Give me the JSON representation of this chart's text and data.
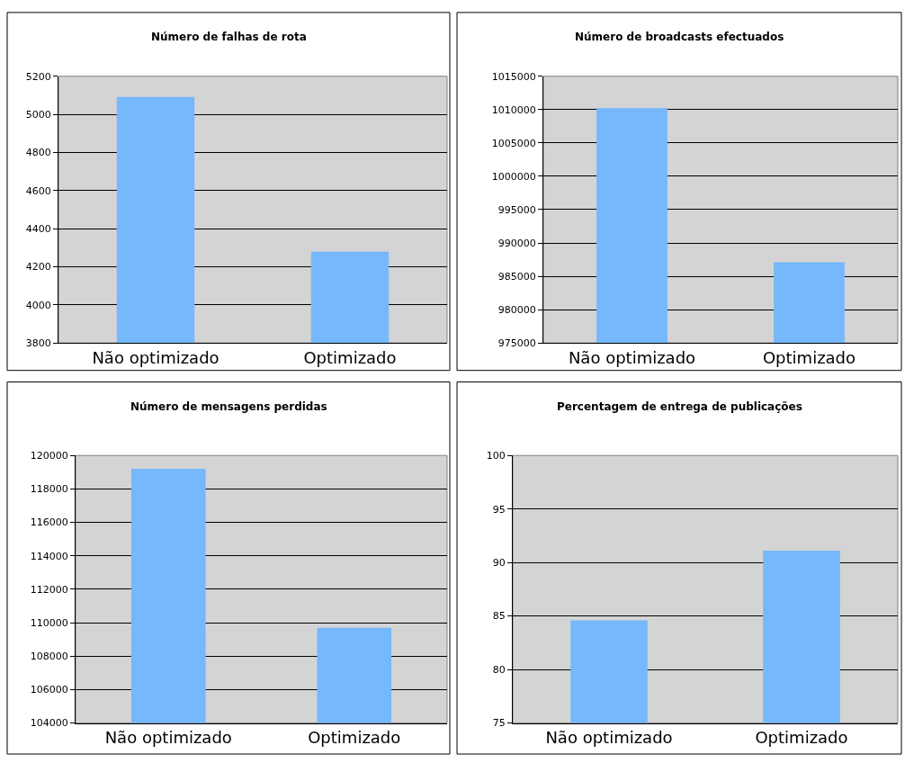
{
  "chart_data": [
    {
      "type": "bar",
      "title": "Número de falhas de rota",
      "categories": [
        "Não optimizado",
        "Optimizado"
      ],
      "values": [
        5091,
        4279
      ],
      "color": "#75b8fc",
      "ylim": [
        3800,
        5200
      ],
      "yticks": [
        3800,
        4000,
        4200,
        4400,
        4600,
        4800,
        5000,
        5200
      ],
      "grid": "y"
    },
    {
      "type": "bar",
      "title": "Número de broadcasts efectuados",
      "categories": [
        "Não optimizado",
        "Optimizado"
      ],
      "values": [
        1010200,
        987100
      ],
      "color": "#75b8fc",
      "ylim": [
        975000,
        1015000
      ],
      "yticks": [
        975000,
        980000,
        985000,
        990000,
        995000,
        1000000,
        1005000,
        1010000,
        1015000
      ],
      "grid": "y"
    },
    {
      "type": "bar",
      "title": "Número de mensagens perdidas",
      "categories": [
        "Não optimizado",
        "Optimizado"
      ],
      "values": [
        119200,
        109700
      ],
      "color": "#75b8fc",
      "ylim": [
        104000,
        120000
      ],
      "yticks": [
        104000,
        106000,
        108000,
        110000,
        112000,
        114000,
        116000,
        118000,
        120000
      ],
      "grid": "y"
    },
    {
      "type": "bar",
      "title": "Percentagem de entrega de publicações",
      "categories": [
        "Não optimizado",
        "Optimizado"
      ],
      "values": [
        84.6,
        91.1
      ],
      "color": "#75b8fc",
      "ylim": [
        75,
        100
      ],
      "yticks": [
        75,
        80,
        85,
        90,
        95,
        100
      ],
      "grid": "y"
    }
  ]
}
